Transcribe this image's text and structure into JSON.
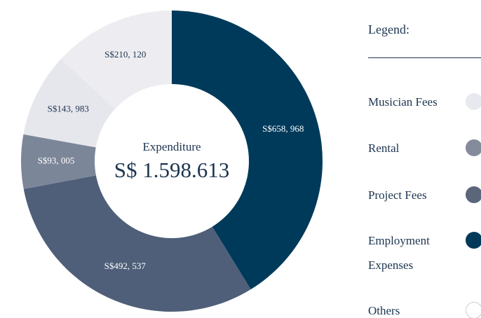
{
  "chart_data": {
    "type": "donut",
    "center_title": "Expenditure",
    "center_value": "S$ 1.598.613",
    "values": [
      658968,
      492537,
      93005,
      143983,
      210120
    ],
    "value_labels": [
      "S$658, 968",
      "S$492, 537",
      "S$93, 005",
      "S$143, 983",
      "S$210, 120"
    ],
    "colors": [
      "#003a5a",
      "#4f5f79",
      "#7c8699",
      "#e6e7ec",
      "#ededf1"
    ],
    "legend_title": "Legend:",
    "legend": [
      {
        "name": "Musician Fees",
        "color": "#e8e9ee"
      },
      {
        "name": "Rental",
        "color": "#848b9b"
      },
      {
        "name": "Project Fees",
        "color": "#5b667a"
      },
      {
        "name": "Employment Expenses",
        "color": "#003a5a"
      },
      {
        "name": "Others",
        "color": "#ffffff"
      }
    ]
  }
}
